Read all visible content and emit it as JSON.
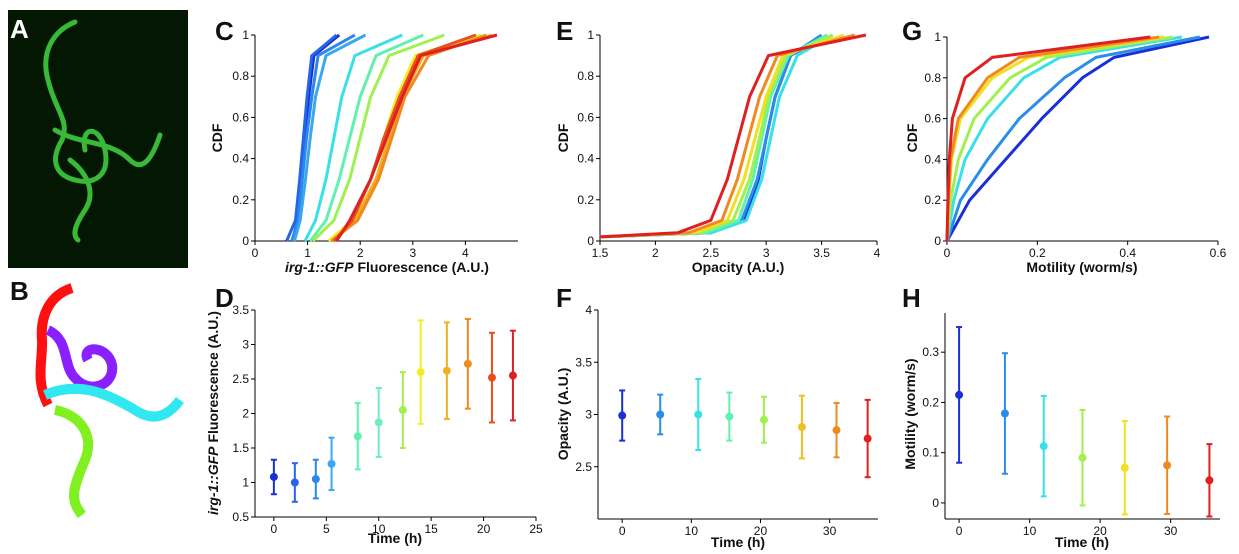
{
  "images": [
    {
      "label": "A"
    },
    {
      "label": "B"
    }
  ],
  "chart_data": [
    {
      "type": "line",
      "label": "C",
      "xlabel": [
        "irg-1::GFP",
        "Fluorescence (A.U.)"
      ],
      "ylabel": "CDF",
      "xlim": [
        0,
        5
      ],
      "xticks": [
        0,
        1,
        2,
        3,
        4
      ],
      "ylim": [
        0,
        1
      ],
      "yticks": [
        0,
        0.2,
        0.4,
        0.6,
        0.8,
        1
      ],
      "series": [
        {
          "color": "#1a2fd6",
          "x": [
            0.72,
            0.8,
            0.88,
            0.95,
            1.02,
            1.12,
            1.6
          ],
          "values": [
            0,
            0.1,
            0.3,
            0.5,
            0.7,
            0.9,
            1
          ]
        },
        {
          "color": "#2466e6",
          "x": [
            0.6,
            0.77,
            0.85,
            0.92,
            0.99,
            1.08,
            1.55
          ],
          "values": [
            0,
            0.1,
            0.3,
            0.5,
            0.7,
            0.9,
            1
          ]
        },
        {
          "color": "#2c86ec",
          "x": [
            0.7,
            0.82,
            0.9,
            0.98,
            1.08,
            1.2,
            1.9
          ],
          "values": [
            0,
            0.1,
            0.3,
            0.5,
            0.7,
            0.9,
            1
          ]
        },
        {
          "color": "#3aa8f0",
          "x": [
            0.75,
            0.86,
            0.96,
            1.05,
            1.15,
            1.35,
            2.1
          ],
          "values": [
            0,
            0.1,
            0.3,
            0.5,
            0.7,
            0.9,
            1
          ]
        },
        {
          "color": "#3ae0e8",
          "x": [
            0.95,
            1.15,
            1.35,
            1.5,
            1.65,
            1.9,
            2.8
          ],
          "values": [
            0,
            0.1,
            0.3,
            0.5,
            0.7,
            0.9,
            1
          ]
        },
        {
          "color": "#60f0b0",
          "x": [
            1.05,
            1.35,
            1.6,
            1.8,
            2.0,
            2.3,
            3.2
          ],
          "values": [
            0,
            0.1,
            0.3,
            0.5,
            0.7,
            0.9,
            1
          ]
        },
        {
          "color": "#a0f050",
          "x": [
            1.1,
            1.5,
            1.8,
            2.0,
            2.2,
            2.55,
            3.6
          ],
          "values": [
            0,
            0.1,
            0.3,
            0.5,
            0.7,
            0.9,
            1
          ]
        },
        {
          "color": "#f0f020",
          "x": [
            1.4,
            1.85,
            2.2,
            2.45,
            2.7,
            3.05,
            4.3
          ],
          "values": [
            0,
            0.1,
            0.3,
            0.5,
            0.7,
            0.9,
            1
          ]
        },
        {
          "color": "#f0b020",
          "x": [
            1.5,
            1.9,
            2.3,
            2.55,
            2.8,
            3.2,
            4.5
          ],
          "values": [
            0,
            0.1,
            0.3,
            0.5,
            0.7,
            0.9,
            1
          ]
        },
        {
          "color": "#f08a20",
          "x": [
            1.45,
            1.95,
            2.35,
            2.6,
            2.85,
            3.3,
            4.4
          ],
          "values": [
            0,
            0.1,
            0.3,
            0.5,
            0.7,
            0.9,
            1
          ]
        },
        {
          "color": "#e8501e",
          "x": [
            1.5,
            1.85,
            2.2,
            2.45,
            2.75,
            3.1,
            4.2
          ],
          "values": [
            0,
            0.1,
            0.3,
            0.5,
            0.7,
            0.9,
            1
          ]
        },
        {
          "color": "#e02020",
          "x": [
            1.55,
            1.8,
            2.2,
            2.5,
            2.8,
            3.15,
            4.6
          ],
          "values": [
            0,
            0.1,
            0.3,
            0.5,
            0.7,
            0.9,
            1
          ]
        }
      ]
    },
    {
      "type": "errorbar",
      "label": "D",
      "xlabel": "Time (h)",
      "ylabel": [
        "irg-1::GFP",
        "Fluorescence (A.U.)"
      ],
      "xlim": [
        -1.8,
        25
      ],
      "xticks": [
        0,
        5,
        10,
        15,
        20,
        25
      ],
      "ylim": [
        0.5,
        3.5
      ],
      "yticks": [
        0.5,
        1,
        1.5,
        2,
        2.5,
        3,
        3.5
      ],
      "x": [
        0,
        2,
        4,
        5.5,
        8,
        10,
        12.3,
        14,
        16.5,
        18.5,
        20.8,
        22.8
      ],
      "values": [
        1.08,
        1.0,
        1.05,
        1.27,
        1.67,
        1.87,
        2.05,
        2.6,
        2.62,
        2.72,
        2.52,
        2.55
      ],
      "errors": [
        0.25,
        0.28,
        0.28,
        0.38,
        0.48,
        0.5,
        0.55,
        0.75,
        0.7,
        0.65,
        0.65,
        0.65
      ],
      "colors": [
        "#1a2fd6",
        "#2466e6",
        "#2c86ec",
        "#3aa8f0",
        "#60f0b0",
        "#70ecc0",
        "#a0f050",
        "#f0f020",
        "#f0b020",
        "#f08a20",
        "#e8501e",
        "#e02020"
      ]
    },
    {
      "type": "line",
      "label": "E",
      "xlabel": "Opacity (A.U.)",
      "ylabel": "CDF",
      "xlim": [
        1.5,
        4
      ],
      "xticks": [
        1.5,
        2,
        2.5,
        3,
        3.5,
        4
      ],
      "ylim": [
        0,
        1
      ],
      "yticks": [
        0,
        0.2,
        0.4,
        0.6,
        0.8,
        1
      ],
      "series": [
        {
          "color": "#1a2fd6",
          "x": [
            1.5,
            2.5,
            2.8,
            2.93,
            3.0,
            3.08,
            3.22,
            3.55
          ],
          "values": [
            0.02,
            0.04,
            0.1,
            0.3,
            0.5,
            0.7,
            0.9,
            1
          ]
        },
        {
          "color": "#2a8ee8",
          "x": [
            1.5,
            2.45,
            2.78,
            2.92,
            3.0,
            3.08,
            3.22,
            3.5
          ],
          "values": [
            0.02,
            0.04,
            0.1,
            0.3,
            0.5,
            0.7,
            0.9,
            1
          ]
        },
        {
          "color": "#3ae0e8",
          "x": [
            1.5,
            2.5,
            2.82,
            2.96,
            3.04,
            3.12,
            3.28,
            3.6
          ],
          "values": [
            0.02,
            0.04,
            0.1,
            0.3,
            0.5,
            0.7,
            0.9,
            1
          ]
        },
        {
          "color": "#60f0b0",
          "x": [
            1.5,
            2.45,
            2.75,
            2.88,
            2.96,
            3.04,
            3.2,
            3.55
          ],
          "values": [
            0.02,
            0.04,
            0.1,
            0.3,
            0.5,
            0.7,
            0.9,
            1
          ]
        },
        {
          "color": "#a0f050",
          "x": [
            1.5,
            2.4,
            2.7,
            2.85,
            2.94,
            3.02,
            3.18,
            3.6
          ],
          "values": [
            0.02,
            0.04,
            0.1,
            0.3,
            0.5,
            0.7,
            0.9,
            1
          ]
        },
        {
          "color": "#f0e020",
          "x": [
            1.5,
            2.35,
            2.65,
            2.8,
            2.9,
            3.0,
            3.15,
            3.7
          ],
          "values": [
            0.02,
            0.04,
            0.1,
            0.3,
            0.5,
            0.7,
            0.9,
            1
          ]
        },
        {
          "color": "#f08a20",
          "x": [
            1.5,
            2.3,
            2.6,
            2.74,
            2.84,
            2.94,
            3.1,
            3.8
          ],
          "values": [
            0.02,
            0.04,
            0.1,
            0.3,
            0.5,
            0.7,
            0.9,
            1
          ]
        },
        {
          "color": "#e02020",
          "x": [
            1.5,
            2.2,
            2.5,
            2.65,
            2.75,
            2.85,
            3.02,
            3.9
          ],
          "values": [
            0.02,
            0.04,
            0.1,
            0.3,
            0.5,
            0.7,
            0.9,
            1
          ]
        }
      ]
    },
    {
      "type": "errorbar",
      "label": "F",
      "xlabel": "Time (h)",
      "ylabel": "Opacity (A.U.)",
      "xlim": [
        -3.5,
        37
      ],
      "xticks": [
        0,
        10,
        20,
        30
      ],
      "ylim": [
        2.0,
        4
      ],
      "yticks": [
        2.5,
        3,
        3.5,
        4
      ],
      "x": [
        0,
        5.5,
        11,
        15.5,
        20.5,
        26,
        31,
        35.5
      ],
      "values": [
        2.99,
        3.0,
        3.0,
        2.98,
        2.95,
        2.88,
        2.85,
        2.77
      ],
      "errors": [
        0.24,
        0.19,
        0.34,
        0.23,
        0.22,
        0.3,
        0.26,
        0.37
      ],
      "colors": [
        "#1a2fd6",
        "#2a8ee8",
        "#3ae0e8",
        "#60f0b0",
        "#a0f050",
        "#f0c020",
        "#f08a20",
        "#e02020"
      ]
    },
    {
      "type": "line",
      "label": "G",
      "xlabel": "Motility (worm/s)",
      "ylabel": "CDF",
      "xlim": [
        0,
        0.6
      ],
      "xticks": [
        0,
        0.2,
        0.4,
        0.6
      ],
      "ylim": [
        0,
        1
      ],
      "yticks": [
        0,
        0.2,
        0.4,
        0.6,
        0.8,
        1
      ],
      "series": [
        {
          "color": "#1a2fd6",
          "x": [
            0,
            0.05,
            0.13,
            0.21,
            0.3,
            0.37,
            0.58
          ],
          "values": [
            0,
            0.2,
            0.4,
            0.6,
            0.8,
            0.9,
            1
          ]
        },
        {
          "color": "#2a8ee8",
          "x": [
            0,
            0.03,
            0.09,
            0.16,
            0.26,
            0.33,
            0.56
          ],
          "values": [
            0,
            0.2,
            0.4,
            0.6,
            0.8,
            0.9,
            1
          ]
        },
        {
          "color": "#3ae0e8",
          "x": [
            0,
            0.015,
            0.04,
            0.09,
            0.17,
            0.25,
            0.52
          ],
          "values": [
            0,
            0.2,
            0.4,
            0.6,
            0.8,
            0.9,
            1
          ]
        },
        {
          "color": "#a0f050",
          "x": [
            0,
            0.008,
            0.025,
            0.06,
            0.14,
            0.22,
            0.5
          ],
          "values": [
            0,
            0.2,
            0.4,
            0.6,
            0.8,
            0.9,
            1
          ]
        },
        {
          "color": "#f0e020",
          "x": [
            0,
            0.004,
            0.01,
            0.03,
            0.1,
            0.18,
            0.48
          ],
          "values": [
            0,
            0.2,
            0.4,
            0.6,
            0.8,
            0.9,
            1
          ]
        },
        {
          "color": "#f08a20",
          "x": [
            0,
            0.003,
            0.008,
            0.025,
            0.09,
            0.16,
            0.47
          ],
          "values": [
            0,
            0.2,
            0.4,
            0.6,
            0.8,
            0.9,
            1
          ]
        },
        {
          "color": "#e02020",
          "x": [
            0,
            0.002,
            0.005,
            0.012,
            0.04,
            0.1,
            0.45
          ],
          "values": [
            0,
            0.2,
            0.4,
            0.6,
            0.8,
            0.9,
            1
          ]
        }
      ]
    },
    {
      "type": "errorbar",
      "label": "H",
      "xlabel": "Time (h)",
      "ylabel": "Motility (worm/s)",
      "xlim": [
        -2,
        37
      ],
      "xticks": [
        0,
        10,
        20,
        30
      ],
      "ylim": [
        -0.032,
        0.378
      ],
      "yticks": [
        0,
        0.1,
        0.2,
        0.3
      ],
      "x": [
        0,
        6.5,
        12,
        17.5,
        23.5,
        29.5,
        35.5
      ],
      "values": [
        0.215,
        0.178,
        0.113,
        0.09,
        0.07,
        0.075,
        0.045
      ],
      "errors": [
        0.135,
        0.12,
        0.1,
        0.095,
        0.093,
        0.097,
        0.072
      ],
      "colors": [
        "#1a2fd6",
        "#2a8ee8",
        "#3ae0e8",
        "#a0f050",
        "#f0e020",
        "#f08a20",
        "#e02020"
      ]
    }
  ]
}
